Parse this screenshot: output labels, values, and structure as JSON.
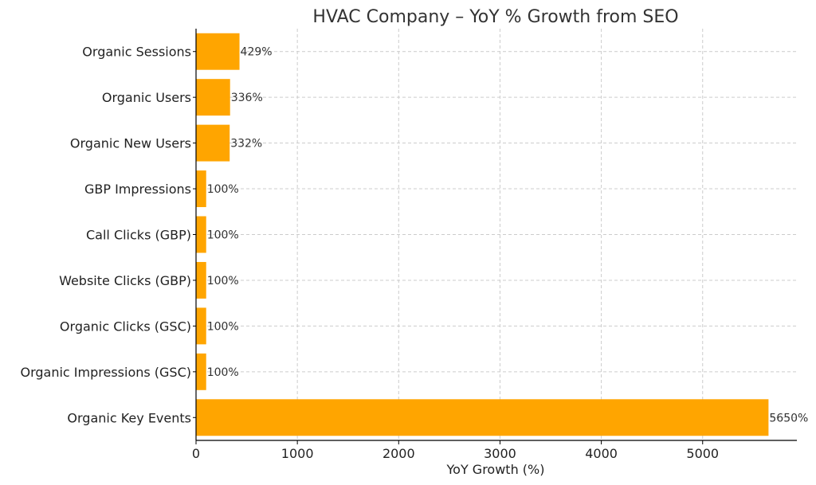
{
  "chart_data": {
    "type": "bar",
    "orientation": "horizontal",
    "title": "HVAC Company – YoY % Growth from SEO",
    "xlabel": "YoY Growth (%)",
    "ylabel": "",
    "xlim": [
      0,
      5930
    ],
    "xticks": [
      0,
      1000,
      2000,
      3000,
      4000,
      5000
    ],
    "grid": true,
    "bar_color": "#FFA500",
    "categories": [
      "Organic Sessions",
      "Organic Users",
      "Organic New Users",
      "GBP Impressions",
      "Call Clicks (GBP)",
      "Website Clicks (GBP)",
      "Organic Clicks (GSC)",
      "Organic Impressions (GSC)",
      "Organic Key Events"
    ],
    "values": [
      429,
      336,
      332,
      100,
      100,
      100,
      100,
      100,
      5650
    ],
    "data_labels": [
      "429%",
      "336%",
      "332%",
      "100%",
      "100%",
      "100%",
      "100%",
      "100%",
      "5650%"
    ]
  }
}
